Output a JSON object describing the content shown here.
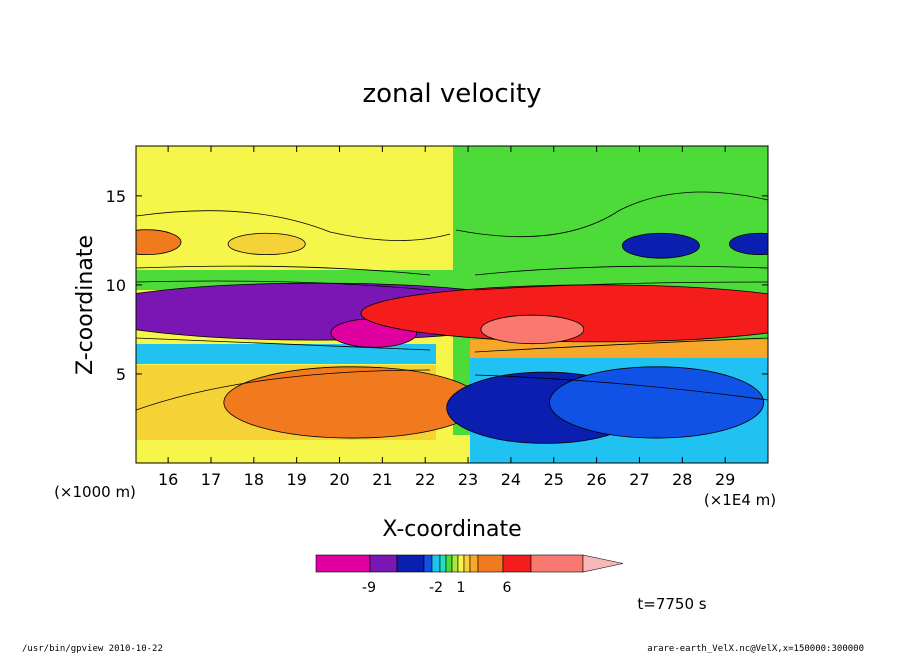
{
  "chart_data": {
    "type": "heatmap",
    "title": "zonal velocity",
    "xlabel": "X-coordinate",
    "ylabel": "Z-coordinate",
    "x_unit_label": "(×1E4 m)",
    "y_unit_label": "(×1000 m)",
    "xlim": [
      15.25,
      30.0
    ],
    "ylim": [
      0.0,
      17.8
    ],
    "x_ticks": [
      "16",
      "17",
      "18",
      "19",
      "20",
      "21",
      "22",
      "23",
      "24",
      "25",
      "26",
      "27",
      "28",
      "29"
    ],
    "y_ticks": [
      "5",
      "10",
      "15"
    ],
    "colorbar": {
      "labels": [
        "-9",
        "-2",
        "1",
        "6"
      ],
      "colors": [
        "#e0009f",
        "#7a17b4",
        "#0a1eb0",
        "#1152e6",
        "#1fc2f0",
        "#1ee0c8",
        "#4ddb3a",
        "#a8e640",
        "#f5f54a",
        "#f5d235",
        "#f8a828",
        "#f27a1e",
        "#f51c1c",
        "#fa7870",
        "#f8b8b8"
      ]
    },
    "blobs": [
      {
        "cx": 19.5,
        "cy": 8.5,
        "rx": 5.5,
        "ry": 1.6,
        "value": -7
      },
      {
        "cx": 20.8,
        "cy": 7.3,
        "rx": 1.0,
        "ry": 0.8,
        "value": -10
      },
      {
        "cx": 26.0,
        "cy": 8.4,
        "rx": 5.5,
        "ry": 1.6,
        "value": 7
      },
      {
        "cx": 24.5,
        "cy": 7.5,
        "rx": 1.2,
        "ry": 0.8,
        "value": 10
      },
      {
        "cx": 20.3,
        "cy": 3.4,
        "rx": 3.0,
        "ry": 2.0,
        "value": 5
      },
      {
        "cx": 24.8,
        "cy": 3.1,
        "rx": 2.3,
        "ry": 2.0,
        "value": -6
      },
      {
        "cx": 27.4,
        "cy": 3.4,
        "rx": 2.5,
        "ry": 2.0,
        "value": -2.5
      },
      {
        "cx": 15.5,
        "cy": 12.4,
        "rx": 0.8,
        "ry": 0.7,
        "value": 6
      },
      {
        "cx": 18.3,
        "cy": 12.3,
        "rx": 0.9,
        "ry": 0.6,
        "value": 3
      },
      {
        "cx": 27.5,
        "cy": 12.2,
        "rx": 0.9,
        "ry": 0.7,
        "value": -4
      },
      {
        "cx": 29.8,
        "cy": 12.3,
        "rx": 0.7,
        "ry": 0.6,
        "value": -5
      }
    ],
    "time_label": "t=7750 s"
  },
  "footer": {
    "left": "/usr/bin/gpview   2010-10-22",
    "right": "arare-earth_VelX.nc@VelX,x=150000:300000"
  }
}
